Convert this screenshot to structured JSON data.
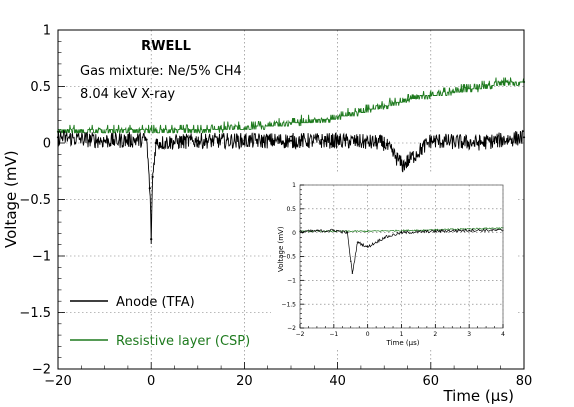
{
  "chart_data": [
    {
      "type": "line",
      "title": "RWELL",
      "annotations": [
        "Gas mixture: Ne/5% CH4",
        "8.04 keV X-ray"
      ],
      "xlabel": "Time (µs)",
      "ylabel": "Voltage (mV)",
      "xlim": [
        -20,
        80
      ],
      "ylim": [
        -2,
        1
      ],
      "x_ticks": [
        "−20",
        "0",
        "20",
        "40",
        "60",
        "80"
      ],
      "y_ticks": [
        "−2",
        "−1.5",
        "−1",
        "−0.5",
        "0",
        "0.5",
        "1"
      ],
      "grid": true,
      "legend_position": "bottom-left",
      "series": [
        {
          "name": "Anode (TFA)",
          "color": "#000000",
          "x": [
            -20,
            -10,
            -1,
            -0.3,
            0,
            0.3,
            1,
            10,
            20,
            30,
            40,
            50,
            54,
            60,
            70,
            80
          ],
          "y": [
            0.05,
            0.02,
            0.03,
            -0.4,
            -0.85,
            -0.3,
            0.0,
            0.02,
            0.02,
            0.02,
            0.02,
            0.0,
            -0.2,
            0.02,
            0.0,
            0.05
          ]
        },
        {
          "name": "Resistive layer (CSP)",
          "color": "#1e7a1e",
          "x": [
            -20,
            10,
            20,
            30,
            40,
            50,
            55,
            60,
            65,
            70,
            75,
            80
          ],
          "y": [
            0.1,
            0.11,
            0.13,
            0.17,
            0.22,
            0.32,
            0.38,
            0.42,
            0.45,
            0.48,
            0.52,
            0.54
          ]
        }
      ]
    },
    {
      "type": "line",
      "title": "",
      "xlabel": "Time (µs)",
      "ylabel": "Voltage (mV)",
      "xlim": [
        -2,
        4
      ],
      "ylim": [
        -2,
        1
      ],
      "x_ticks": [
        "−2",
        "−1",
        "0",
        "1",
        "2",
        "3",
        "4"
      ],
      "y_ticks": [
        "−2",
        "−1.5",
        "−1",
        "−0.5",
        "0",
        "0.5",
        "1"
      ],
      "grid": true,
      "series": [
        {
          "color": "#000000",
          "x": [
            -2,
            -1,
            -0.6,
            -0.5,
            -0.45,
            -0.3,
            0,
            0.5,
            1,
            2,
            3,
            4
          ],
          "y": [
            0.02,
            0.05,
            0.0,
            -0.6,
            -0.85,
            -0.2,
            -0.3,
            -0.1,
            0.0,
            0.03,
            0.05,
            0.05
          ]
        },
        {
          "color": "#1e7a1e",
          "x": [
            -2,
            0,
            2,
            4
          ],
          "y": [
            0.03,
            0.03,
            0.06,
            0.1
          ]
        }
      ]
    }
  ]
}
